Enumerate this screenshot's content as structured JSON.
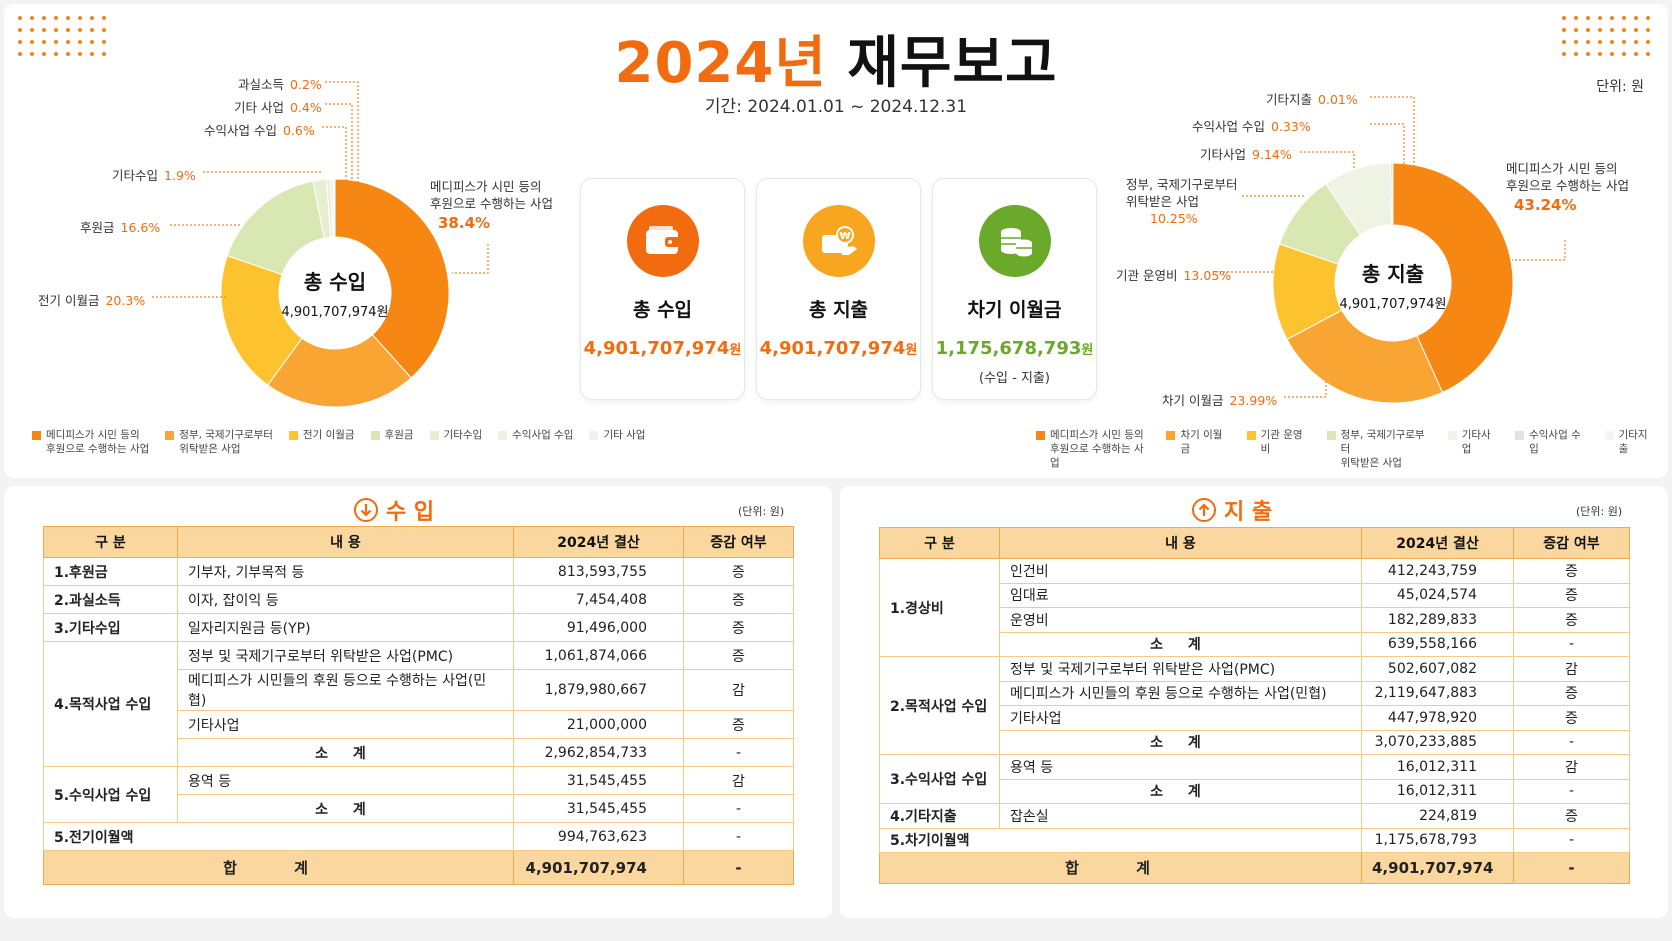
{
  "header": {
    "title_year": "2024년",
    "title_rest": "재무보고",
    "period": "기간:  2024.01.01 ~ 2024.12.31",
    "unit": "단위: 원"
  },
  "colors": {
    "accent": "#f26b0f",
    "green": "#6aa92a",
    "table_header": "#fbd7a0"
  },
  "cards": [
    {
      "label": "총 수입",
      "amount": "4,901,707,974",
      "suffix": "원",
      "color": "#f26b0f",
      "icon": "wallet-icon"
    },
    {
      "label": "총 지출",
      "amount": "4,901,707,974",
      "suffix": "원",
      "color": "#f26b0f",
      "icon": "won-payment-icon"
    },
    {
      "label": "차기 이월금",
      "amount": "1,175,678,793",
      "suffix": "원",
      "color": "#6aa92a",
      "icon": "coins-icon",
      "note": "(수입 - 지출)"
    }
  ],
  "chart_data": [
    {
      "type": "pie",
      "center_title": "총 수입",
      "center_value": "4,901,707,974원",
      "categories": [
        "메디피스가 시민 등의 후원으로 수행하는 사업",
        "정부, 국제기구로부터 위탁받은 사업",
        "전기 이월금",
        "후원금",
        "기타수입",
        "수익사업 수입",
        "기타 사업",
        "과실소득"
      ],
      "values": [
        38.4,
        21.7,
        20.3,
        16.6,
        1.9,
        0.6,
        0.4,
        0.2
      ],
      "colors": [
        "#f68712",
        "#f9a534",
        "#fdc32f",
        "#d9e8b3",
        "#e6efcf",
        "#ecf1de",
        "#f0f0f0",
        "#f4f4f4"
      ],
      "labels": [
        {
          "name": "메디피스가 시민 등의\n후원으로 수행하는 사업",
          "pct": "38.4%"
        },
        {
          "name": "전기 이월금",
          "pct": "20.3%"
        },
        {
          "name": "후원금",
          "pct": "16.6%"
        },
        {
          "name": "기타수입",
          "pct": "1.9%"
        },
        {
          "name": "수익사업 수입",
          "pct": "0.6%"
        },
        {
          "name": "기타 사업",
          "pct": "0.4%"
        },
        {
          "name": "과실소득",
          "pct": "0.2%"
        }
      ],
      "legend": [
        "메디피스가 시민 등의\n후원으로 수행하는 사업",
        "정부, 국제기구로부터\n위탁받은 사업",
        "전기 이월금",
        "후원금",
        "기타수입",
        "수익사업 수입",
        "기타 사업"
      ]
    },
    {
      "type": "pie",
      "center_title": "총 지출",
      "center_value": "4,901,707,974원",
      "categories": [
        "메디피스가 시민 등의 후원으로 수행하는 사업",
        "차기 이월금",
        "기관 운영비",
        "정부, 국제기구로부터 위탁받은 사업",
        "기타사업",
        "수익사업 수입",
        "기타지출"
      ],
      "values": [
        43.24,
        23.99,
        13.05,
        10.25,
        9.14,
        0.33,
        0.01
      ],
      "colors": [
        "#f68712",
        "#f9a534",
        "#fdc32f",
        "#d9e8b3",
        "#eef3e3",
        "#e2e2e2",
        "#f4f4f4"
      ],
      "labels": [
        {
          "name": "메디피스가 시민 등의\n후원으로 수행하는 사업",
          "pct": "43.24%"
        },
        {
          "name": "차기 이월금",
          "pct": "23.99%"
        },
        {
          "name": "기관 운영비",
          "pct": "13.05%"
        },
        {
          "name": "정부, 국제기구로부터\n위탁받은 사업",
          "pct": "10.25%"
        },
        {
          "name": "기타사업",
          "pct": "9.14%"
        },
        {
          "name": "수익사업 수입",
          "pct": "0.33%"
        },
        {
          "name": "기타지출",
          "pct": "0.01%"
        }
      ],
      "legend": [
        "메디피스가 시민 등의\n후원으로 수행하는 사업",
        "차기 이월금",
        "기관 운영비",
        "정부, 국제기구로부터\n위탁받은 사업",
        "기타사업",
        "수익사업 수입",
        "기타지출"
      ]
    }
  ],
  "income": {
    "title": "수 입",
    "unit": "(단위: 원)",
    "headers": [
      "구   분",
      "내   용",
      "2024년 결산",
      "증감 여부"
    ],
    "rows": [
      {
        "cat": "1.후원금",
        "content": "기부자, 기부목적 등",
        "amount": "813,593,755",
        "change": "증"
      },
      {
        "cat": "2.과실소득",
        "content": "이자, 잡이익 등",
        "amount": "7,454,408",
        "change": "증"
      },
      {
        "cat": "3.기타수입",
        "content": "일자리지원금 등(YP)",
        "amount": "91,496,000",
        "change": "증"
      },
      {
        "cat": "4.목적사업 수입",
        "content": "정부 및 국제기구로부터 위탁받은 사업(PMC)",
        "amount": "1,061,874,066",
        "change": "증"
      },
      {
        "cat": "",
        "content": "메디피스가 시민들의 후원 등으로 수행하는 사업(민협)",
        "amount": "1,879,980,667",
        "change": "감"
      },
      {
        "cat": "",
        "content": "기타사업",
        "amount": "21,000,000",
        "change": "증"
      },
      {
        "cat": "",
        "content": "소 계",
        "amount": "2,962,854,733",
        "change": "-"
      },
      {
        "cat": "5.수익사업 수입",
        "content": "용역 등",
        "amount": "31,545,455",
        "change": "감"
      },
      {
        "cat": "",
        "content": "소 계",
        "amount": "31,545,455",
        "change": "-"
      },
      {
        "cat": "5.전기이월액",
        "content": "",
        "amount": "994,763,623",
        "change": "-"
      }
    ],
    "total": {
      "label": "합 계",
      "amount": "4,901,707,974",
      "change": "-"
    }
  },
  "expense": {
    "title": "지 출",
    "unit": "(단위: 원)",
    "headers": [
      "구   분",
      "내   용",
      "2024년 결산",
      "증감 여부"
    ],
    "rows": [
      {
        "cat": "1.경상비",
        "content": "인건비",
        "amount": "412,243,759",
        "change": "증"
      },
      {
        "cat": "",
        "content": "임대료",
        "amount": "45,024,574",
        "change": "증"
      },
      {
        "cat": "",
        "content": "운영비",
        "amount": "182,289,833",
        "change": "증"
      },
      {
        "cat": "",
        "content": "소 계",
        "amount": "639,558,166",
        "change": "-"
      },
      {
        "cat": "2.목적사업 수입",
        "content": "정부 및 국제기구로부터 위탁받은 사업(PMC)",
        "amount": "502,607,082",
        "change": "감"
      },
      {
        "cat": "",
        "content": "메디피스가 시민들의 후원 등으로 수행하는 사업(민협)",
        "amount": "2,119,647,883",
        "change": "증"
      },
      {
        "cat": "",
        "content": "기타사업",
        "amount": "447,978,920",
        "change": "증"
      },
      {
        "cat": "",
        "content": "소 계",
        "amount": "3,070,233,885",
        "change": "-"
      },
      {
        "cat": "3.수익사업 수입",
        "content": "용역 등",
        "amount": "16,012,311",
        "change": "감"
      },
      {
        "cat": "",
        "content": "소 계",
        "amount": "16,012,311",
        "change": "-"
      },
      {
        "cat": "4.기타지출",
        "content": "잡손실",
        "amount": "224,819",
        "change": "증"
      },
      {
        "cat": "5.차기이월액",
        "content": "",
        "amount": "1,175,678,793",
        "change": "-"
      }
    ],
    "total": {
      "label": "합 계",
      "amount": "4,901,707,974",
      "change": "-"
    }
  }
}
